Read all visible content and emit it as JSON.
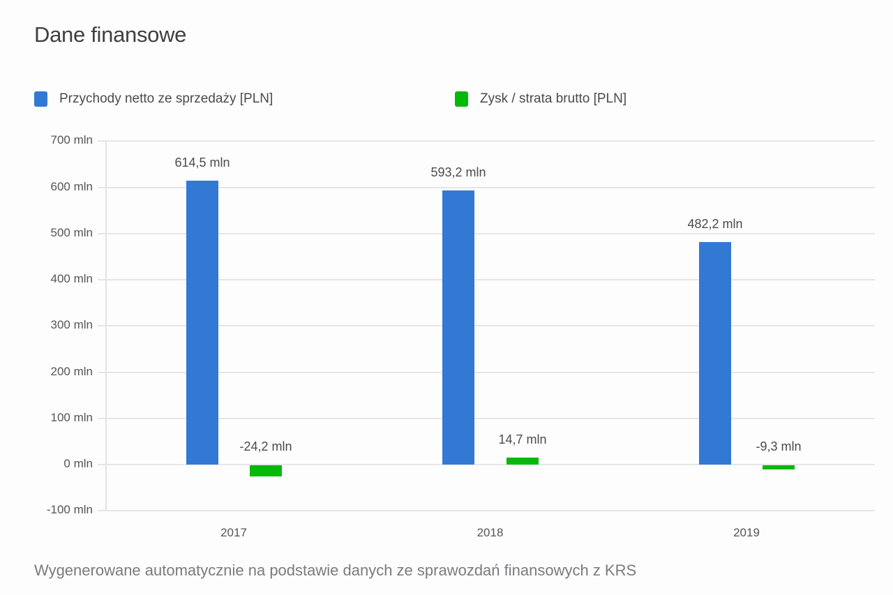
{
  "title": "Dane finansowe",
  "legend": [
    {
      "label": "Przychody netto ze sprzedaży [PLN]",
      "color": "#3279d4"
    },
    {
      "label": "Zysk / strata brutto [PLN]",
      "color": "#05b90a"
    }
  ],
  "footer": "Wygenerowane automatycznie na podstawie danych ze sprawozdań finansowych z KRS",
  "chart_data": {
    "type": "bar",
    "title": "Dane finansowe",
    "categories": [
      "2017",
      "2018",
      "2019"
    ],
    "series": [
      {
        "name": "Przychody netto ze sprzedaży [PLN]",
        "color": "#3279d4",
        "values": [
          614.5,
          593.2,
          482.2
        ],
        "labels": [
          "614,5 mln",
          "593,2 mln",
          "482,2 mln"
        ]
      },
      {
        "name": "Zysk / strata brutto [PLN]",
        "color": "#05b90a",
        "values": [
          -24.2,
          14.7,
          -9.3
        ],
        "labels": [
          "-24,2 mln",
          "14,7 mln",
          "-9,3 mln"
        ]
      }
    ],
    "unit": "mln PLN",
    "xlabel": "",
    "ylabel": "",
    "ylim": [
      -100,
      700
    ],
    "yticks": [
      700,
      600,
      500,
      400,
      300,
      200,
      100,
      0,
      -100
    ],
    "ytick_labels": [
      "700 mln",
      "600 mln",
      "500 mln",
      "400 mln",
      "300 mln",
      "200 mln",
      "100 mln",
      "0 mln",
      "-100 mln"
    ],
    "grid": true,
    "legend_position": "top"
  }
}
